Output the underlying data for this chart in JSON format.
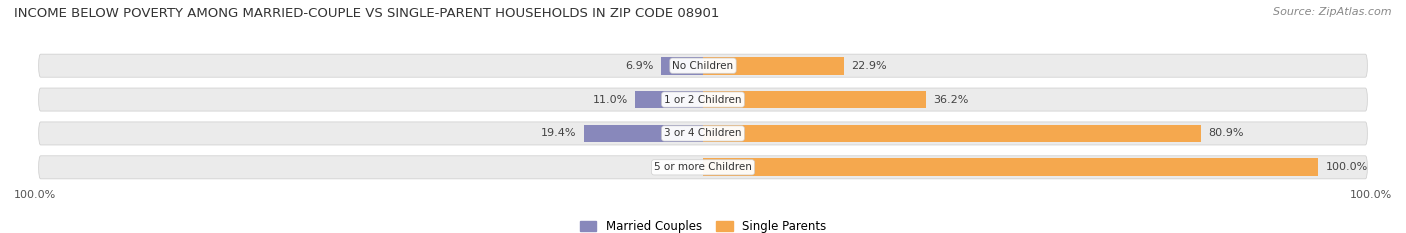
{
  "title": "INCOME BELOW POVERTY AMONG MARRIED-COUPLE VS SINGLE-PARENT HOUSEHOLDS IN ZIP CODE 08901",
  "source": "Source: ZipAtlas.com",
  "categories": [
    "No Children",
    "1 or 2 Children",
    "3 or 4 Children",
    "5 or more Children"
  ],
  "married_values": [
    6.9,
    11.0,
    19.4,
    0.0
  ],
  "single_values": [
    22.9,
    36.2,
    80.9,
    100.0
  ],
  "married_color": "#8888bb",
  "single_color": "#f5a84e",
  "pill_bg_color": "#ebebeb",
  "title_fontsize": 9.5,
  "source_fontsize": 8,
  "label_fontsize": 8,
  "cat_fontsize": 7.5,
  "axis_label_left": "100.0%",
  "axis_label_right": "100.0%",
  "max_val": 100.0
}
